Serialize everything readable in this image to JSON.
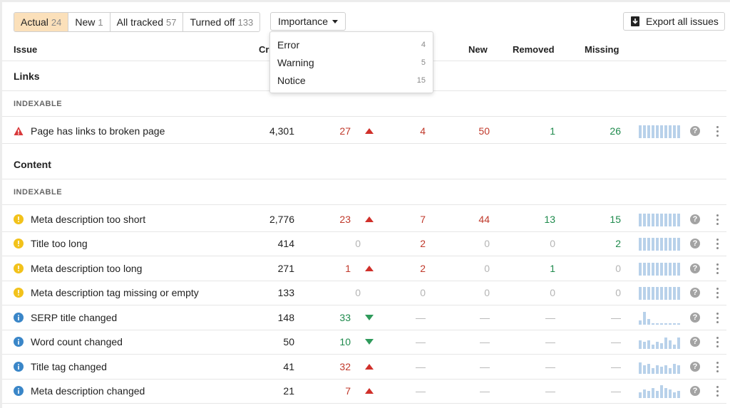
{
  "tabs": [
    {
      "label": "Actual",
      "count": "24",
      "active": true
    },
    {
      "label": "New",
      "count": "1",
      "active": false
    },
    {
      "label": "All tracked",
      "count": "57",
      "active": false
    },
    {
      "label": "Turned off",
      "count": "133",
      "active": false
    }
  ],
  "importance_filter": {
    "label": "Importance",
    "options": [
      {
        "label": "Error",
        "count": "4"
      },
      {
        "label": "Warning",
        "count": "5"
      },
      {
        "label": "Notice",
        "count": "15"
      }
    ]
  },
  "export_button": {
    "label": "Export all issues",
    "icon": "download-icon"
  },
  "columns": [
    "Issue",
    "Cr",
    "New",
    "Removed",
    "Missing"
  ],
  "sections": [
    {
      "title": "Links",
      "subsection": "INDEXABLE",
      "rows": [
        {
          "severity": "error",
          "icon": "warning-triangle-icon",
          "name": "Page has links to broken page",
          "values": [
            "4,301",
            "27",
            "4",
            "50",
            "1",
            "26"
          ],
          "trend": "up",
          "spark": [
            90,
            90,
            90,
            90,
            90,
            90,
            90,
            90,
            90,
            90
          ]
        }
      ]
    },
    {
      "title": "Content",
      "subsection": "INDEXABLE",
      "rows": [
        {
          "severity": "warning",
          "icon": "warning-circle-icon",
          "name": "Meta description too short",
          "values": [
            "2,776",
            "23",
            "7",
            "44",
            "13",
            "15"
          ],
          "trend": "up",
          "spark": [
            90,
            90,
            90,
            90,
            90,
            90,
            90,
            90,
            90,
            90
          ]
        },
        {
          "severity": "warning",
          "icon": "warning-circle-icon",
          "name": "Title too long",
          "values": [
            "414",
            "0",
            "2",
            "0",
            "0",
            "2"
          ],
          "trend": "",
          "spark": [
            90,
            90,
            90,
            90,
            90,
            90,
            90,
            90,
            90,
            90
          ]
        },
        {
          "severity": "warning",
          "icon": "warning-circle-icon",
          "name": "Meta description too long",
          "values": [
            "271",
            "1",
            "2",
            "0",
            "1",
            "0"
          ],
          "trend": "up",
          "spark": [
            90,
            90,
            90,
            90,
            90,
            90,
            90,
            90,
            90,
            90
          ]
        },
        {
          "severity": "warning",
          "icon": "warning-circle-icon",
          "name": "Meta description tag missing or empty",
          "values": [
            "133",
            "0",
            "0",
            "0",
            "0",
            "0"
          ],
          "trend": "",
          "spark": [
            90,
            90,
            90,
            90,
            90,
            90,
            90,
            90,
            90,
            90
          ]
        },
        {
          "severity": "notice",
          "icon": "info-icon",
          "name": "SERP title changed",
          "values": [
            "148",
            "33",
            "—",
            "—",
            "—",
            "—"
          ],
          "trend": "down",
          "spark": [
            30,
            90,
            40,
            10,
            10,
            10,
            10,
            10,
            10,
            10
          ]
        },
        {
          "severity": "notice",
          "icon": "info-icon",
          "name": "Word count changed",
          "values": [
            "50",
            "10",
            "—",
            "—",
            "—",
            "—"
          ],
          "trend": "down",
          "spark": [
            60,
            50,
            60,
            30,
            50,
            40,
            80,
            60,
            30,
            80
          ]
        },
        {
          "severity": "notice",
          "icon": "info-icon",
          "name": "Title tag changed",
          "values": [
            "41",
            "32",
            "—",
            "—",
            "—",
            "—"
          ],
          "trend": "up",
          "spark": [
            80,
            60,
            70,
            40,
            60,
            50,
            60,
            40,
            70,
            60
          ]
        },
        {
          "severity": "notice",
          "icon": "info-icon",
          "name": "Meta description changed",
          "values": [
            "21",
            "7",
            "—",
            "—",
            "—",
            "—"
          ],
          "trend": "up",
          "spark": [
            40,
            60,
            50,
            70,
            50,
            90,
            70,
            60,
            40,
            50
          ]
        }
      ]
    }
  ],
  "colors": {
    "active_tab": "#fbe0ba",
    "error": "#d9393b",
    "warning": "#f2c21b",
    "notice": "#3a86c8",
    "red_value": "#c0392b",
    "green_value": "#1e8a4c",
    "spark": "#b8d1ea"
  }
}
